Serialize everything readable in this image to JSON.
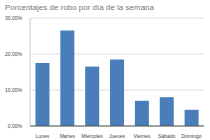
{
  "chart_data": {
    "type": "bar",
    "title": "Porcentajes de robo por día de la semana",
    "categories": [
      "Lunes",
      "Martes",
      "Miércoles",
      "Jueves",
      "Viernes",
      "Sábado",
      "Domingo"
    ],
    "values": [
      17.5,
      26.5,
      16.5,
      18.5,
      7,
      8,
      4.5
    ],
    "color": "#4a7ebb",
    "ylim": [
      0,
      30
    ],
    "yticks": [
      {
        "value": 0,
        "label": "0,00%"
      },
      {
        "value": 10,
        "label": "10,00%"
      },
      {
        "value": 20,
        "label": "20,00%"
      },
      {
        "value": 30,
        "label": "30,00%"
      }
    ],
    "grid": true
  }
}
